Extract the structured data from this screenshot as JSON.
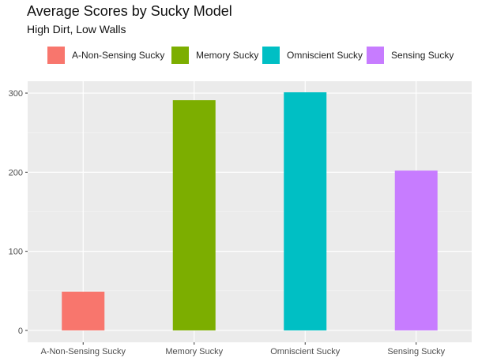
{
  "chart_data": {
    "type": "bar",
    "title": "Average Scores by Sucky Model",
    "subtitle": "High Dirt, Low Walls",
    "xlabel": "",
    "ylabel": "",
    "categories": [
      "A-Non-Sensing Sucky",
      "Memory Sucky",
      "Omniscient Sucky",
      "Sensing Sucky"
    ],
    "values": [
      49,
      291,
      301,
      202
    ],
    "colors": [
      "#F8766D",
      "#7CAE00",
      "#00BFC4",
      "#C77CFF"
    ],
    "ylim": [
      -15,
      315
    ],
    "yticks": [
      0,
      100,
      200,
      300
    ],
    "grid": true,
    "legend_position": "top",
    "legend": [
      "A-Non-Sensing Sucky",
      "Memory Sucky",
      "Omniscient Sucky",
      "Sensing Sucky"
    ]
  }
}
